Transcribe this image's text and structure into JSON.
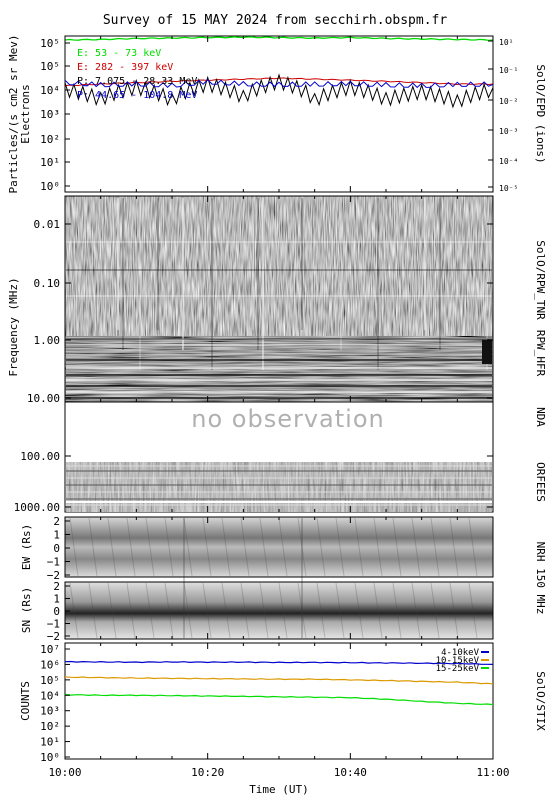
{
  "title": "Survey of 15 MAY 2024 from secchirh.obspm.fr",
  "x_axis": {
    "label": "Time (UT)",
    "ticks": [
      "10:00",
      "10:20",
      "10:40",
      "11:00"
    ],
    "range": [
      "10:00",
      "11:00"
    ]
  },
  "panels": {
    "epd": {
      "left_label_1": "Particles/(s cm2 sr Mev)",
      "left_label_2": "Electrons",
      "right_label": "SolO/EPD (ions)",
      "left_ticks": [
        "10⁰",
        "10¹",
        "10²",
        "10³",
        "10⁴",
        "10⁵",
        "10⁵"
      ],
      "right_ticks": [
        "10¹",
        "10⁻¹",
        "10⁻²",
        "10⁻³",
        "10⁻⁴",
        "10⁻⁵"
      ],
      "legend": [
        {
          "text": "E: 53 - 73 keV",
          "color": "#00dd00"
        },
        {
          "text": "E: 282 - 397 keV",
          "color": "#cc0000"
        },
        {
          "text": "P: 7.075 - 28.33 MeV",
          "color": "#000000"
        },
        {
          "text": "P: 44.65 - 104.8 MeV",
          "color": "#0000cc"
        }
      ]
    },
    "rpw_tnr": {
      "right_label": "SolO/RPW_TNR"
    },
    "rpw_hfr": {
      "right_label": "RPW_HFR"
    },
    "frequency": {
      "left_label": "Frequency (MHz)",
      "ticks": [
        "0.01",
        "0.10",
        "1.00",
        "10.00",
        "100.00",
        "1000.00"
      ]
    },
    "nda": {
      "right_label": "NDA",
      "overlay_text": "no observation"
    },
    "orfees": {
      "right_label": "ORFEES"
    },
    "nrh": {
      "right_label": "NRH 150 MHz",
      "ew_label": "EW (Rs)",
      "sn_label": "SN (Rs)",
      "ticks": [
        "2",
        "1",
        "0",
        "−1",
        "−2"
      ]
    },
    "stix": {
      "left_label": "COUNTS",
      "right_label": "SolO/STIX",
      "ticks": [
        "10⁰",
        "10¹",
        "10²",
        "10³",
        "10⁴",
        "10⁵",
        "10⁶",
        "10⁷"
      ],
      "legend": [
        {
          "text": "4-10keV",
          "color": "#0000cc"
        },
        {
          "text": "10-15keV",
          "color": "#dd9900"
        },
        {
          "text": "15-25keV",
          "color": "#00dd00"
        }
      ]
    }
  },
  "colors": {
    "epd_green": "#00dd00",
    "epd_red": "#cc0000",
    "stix_blue": "#0000cc",
    "stix_orange": "#dd9900",
    "stix_green": "#00dd00"
  },
  "chart_data": [
    {
      "type": "line",
      "name": "SolO/EPD",
      "x": [
        "10:00",
        "10:05",
        "10:10",
        "10:15",
        "10:20",
        "10:25",
        "10:30",
        "10:35",
        "10:40",
        "10:45",
        "10:50",
        "10:55",
        "11:00"
      ],
      "series": [
        {
          "name": "E: 53 - 73 keV",
          "values": [
            200000,
            210000,
            230000,
            240000,
            250000,
            260000,
            250000,
            240000,
            250000,
            230000,
            220000,
            210000,
            200000
          ]
        },
        {
          "name": "E: 282 - 397 keV",
          "values": [
            3000,
            3500,
            4000,
            4500,
            5000,
            5500,
            6000,
            5500,
            5000,
            4500,
            4000,
            3500,
            3500
          ]
        },
        {
          "name": "P: 7.075 - 28.33 MeV",
          "values": [
            2500,
            1000,
            3000,
            900,
            4000,
            1200,
            5000,
            900,
            3000,
            1000,
            2000,
            800,
            2500
          ]
        },
        {
          "name": "P: 44.65 - 104.8 MeV",
          "values": [
            4000,
            3200,
            3500,
            3000,
            4200,
            3500,
            3300,
            3400,
            3600,
            3200,
            3000,
            3300,
            3400
          ]
        }
      ],
      "ylim": [
        0.3,
        200000
      ],
      "yscale": "log",
      "legend": "top-left"
    },
    {
      "type": "line",
      "name": "SolO/STIX",
      "x": [
        "10:00",
        "10:05",
        "10:10",
        "10:15",
        "10:20",
        "10:25",
        "10:30",
        "10:35",
        "10:40",
        "10:45",
        "10:50",
        "10:55",
        "11:00"
      ],
      "series": [
        {
          "name": "4-10keV",
          "values": [
            1500000,
            1450000,
            1400000,
            1450000,
            1400000,
            1400000,
            1350000,
            1350000,
            1300000,
            1250000,
            1200000,
            1150000,
            1000000
          ]
        },
        {
          "name": "10-15keV",
          "values": [
            150000,
            140000,
            130000,
            125000,
            120000,
            115000,
            110000,
            110000,
            100000,
            90000,
            80000,
            70000,
            55000
          ]
        },
        {
          "name": "15-25keV",
          "values": [
            11000,
            10000,
            10000,
            9500,
            9000,
            8500,
            8000,
            7500,
            7000,
            5500,
            4000,
            3000,
            2500
          ]
        }
      ],
      "ylim": [
        1,
        10000000
      ],
      "yscale": "log",
      "legend": "top-right"
    }
  ]
}
